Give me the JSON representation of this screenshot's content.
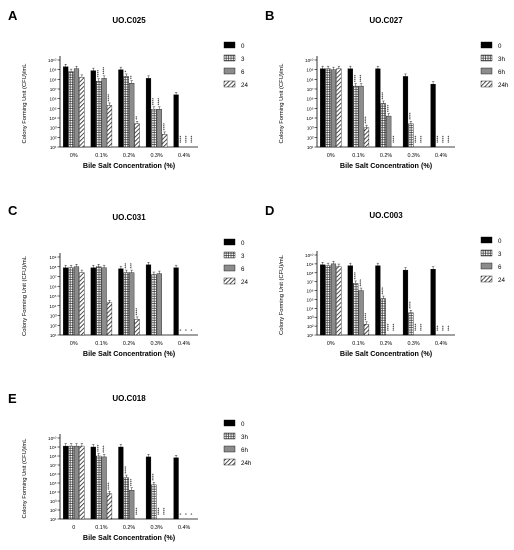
{
  "chart_data": [
    {
      "panel": "A",
      "title": "UO.C025",
      "type": "bar",
      "xlabel": "Bile Salt Concentration (%)",
      "ylabel": "Colony Forming Unit (CFU)/mL",
      "scale": "log",
      "ylim_exp": [
        1,
        10
      ],
      "ytick_labels": [
        "10¹⁰",
        "10⁹",
        "10⁸",
        "10⁷",
        "10⁶",
        "10⁵",
        "10⁴",
        "10³",
        "10²",
        "10¹"
      ],
      "categories": [
        "0%",
        "0.1%",
        "0.2%",
        "0.3%",
        "0.4%"
      ],
      "legend_position": "right",
      "series": [
        {
          "name": "0",
          "pattern": "solid",
          "log_values": [
            9.3,
            8.9,
            9.0,
            8.1,
            6.4
          ]
        },
        {
          "name": "3",
          "pattern": "grid",
          "log_values": [
            8.8,
            7.8,
            8.3,
            4.9,
            null
          ]
        },
        {
          "name": "6",
          "pattern": "gray",
          "log_values": [
            9.1,
            8.1,
            7.6,
            4.9,
            null
          ]
        },
        {
          "name": "24",
          "pattern": "diag",
          "log_values": [
            8.2,
            5.3,
            3.4,
            2.3,
            null
          ]
        }
      ],
      "annotations": [
        {
          "group": 1,
          "series": 1,
          "text": "****"
        },
        {
          "group": 1,
          "series": 2,
          "text": "****"
        },
        {
          "group": 1,
          "series": 3,
          "text": "****"
        },
        {
          "group": 2,
          "series": 1,
          "text": "*"
        },
        {
          "group": 2,
          "series": 2,
          "text": "**"
        },
        {
          "group": 2,
          "series": 3,
          "text": "**"
        },
        {
          "group": 3,
          "series": 1,
          "text": "****"
        },
        {
          "group": 3,
          "series": 2,
          "text": "****"
        },
        {
          "group": 3,
          "series": 3,
          "text": "****"
        },
        {
          "group": 4,
          "series": 1,
          "text": "****"
        },
        {
          "group": 4,
          "series": 2,
          "text": "****"
        },
        {
          "group": 4,
          "series": 3,
          "text": "****"
        }
      ]
    },
    {
      "panel": "B",
      "title": "UO.C027",
      "type": "bar",
      "xlabel": "Bile Salt Concentration (%)",
      "ylabel": "Colony Forming Unit (CFU)/mL",
      "scale": "log",
      "ylim_exp": [
        1,
        10
      ],
      "ytick_labels": [
        "10¹⁰",
        "10⁹",
        "10⁸",
        "10⁷",
        "10⁶",
        "10⁵",
        "10⁴",
        "10³",
        "10²",
        "10¹"
      ],
      "categories": [
        "0%",
        "0.1%",
        "0.2%",
        "0.3%",
        "0.4%"
      ],
      "legend_position": "right",
      "series": [
        {
          "name": "0",
          "pattern": "solid",
          "log_values": [
            9.1,
            9.1,
            9.1,
            8.3,
            7.5
          ]
        },
        {
          "name": "3h",
          "pattern": "grid",
          "log_values": [
            9.1,
            7.3,
            5.5,
            3.4,
            null
          ]
        },
        {
          "name": "6h",
          "pattern": "gray",
          "log_values": [
            9.0,
            7.3,
            4.2,
            null,
            null
          ]
        },
        {
          "name": "24h",
          "pattern": "diag",
          "log_values": [
            9.1,
            3.0,
            null,
            null,
            null
          ]
        }
      ],
      "annotations": [
        {
          "group": 1,
          "series": 1,
          "text": "****"
        },
        {
          "group": 1,
          "series": 2,
          "text": "****"
        },
        {
          "group": 1,
          "series": 3,
          "text": "****"
        },
        {
          "group": 2,
          "series": 1,
          "text": "****"
        },
        {
          "group": 2,
          "series": 2,
          "text": "****"
        },
        {
          "group": 2,
          "series": 3,
          "text": "****"
        },
        {
          "group": 3,
          "series": 1,
          "text": "****"
        },
        {
          "group": 3,
          "series": 2,
          "text": "****"
        },
        {
          "group": 3,
          "series": 3,
          "text": "****"
        },
        {
          "group": 4,
          "series": 1,
          "text": "****"
        },
        {
          "group": 4,
          "series": 2,
          "text": "****"
        },
        {
          "group": 4,
          "series": 3,
          "text": "****"
        }
      ]
    },
    {
      "panel": "C",
      "title": "UO.C031",
      "type": "bar",
      "xlabel": "Bile Salt Concentration (%)",
      "ylabel": "Colony Forming Unit (CFU)/mL",
      "scale": "log",
      "ylim_exp": [
        1,
        9
      ],
      "ytick_labels": [
        "10⁹",
        "10⁸",
        "10⁷",
        "10⁶",
        "10⁵",
        "10⁴",
        "10³",
        "10²",
        "10¹"
      ],
      "categories": [
        "0%",
        "0.1%",
        "0.2%",
        "0.3%",
        "0.4%"
      ],
      "legend_position": "right",
      "series": [
        {
          "name": "0",
          "pattern": "solid",
          "log_values": [
            7.9,
            7.9,
            7.8,
            8.2,
            7.9
          ]
        },
        {
          "name": "3",
          "pattern": "grid",
          "log_values": [
            7.9,
            8.0,
            7.4,
            7.2,
            null
          ]
        },
        {
          "name": "6",
          "pattern": "gray",
          "log_values": [
            8.0,
            7.9,
            7.4,
            7.3,
            null
          ]
        },
        {
          "name": "24",
          "pattern": "diag",
          "log_values": [
            7.4,
            4.3,
            2.6,
            null,
            null
          ]
        }
      ],
      "annotations": [
        {
          "group": 2,
          "series": 1,
          "text": "***"
        },
        {
          "group": 2,
          "series": 2,
          "text": "***"
        },
        {
          "group": 2,
          "series": 3,
          "text": "****"
        },
        {
          "group": 4,
          "series": 1,
          "text": "*"
        },
        {
          "group": 4,
          "series": 2,
          "text": "*"
        },
        {
          "group": 4,
          "series": 3,
          "text": "*"
        }
      ]
    },
    {
      "panel": "D",
      "title": "UO.C003",
      "type": "bar",
      "xlabel": "Bile Salt Concentration (%)",
      "ylabel": "Colony Forming Unit (CFU)/mL",
      "scale": "log",
      "ylim_exp": [
        1,
        10
      ],
      "ytick_labels": [
        "10¹⁰",
        "10⁹",
        "10⁸",
        "10⁷",
        "10⁶",
        "10⁵",
        "10⁴",
        "10³",
        "10²",
        "10¹"
      ],
      "categories": [
        "0%",
        "0.1%",
        "0.2%",
        "0.3%",
        "0.4%"
      ],
      "legend_position": "right",
      "series": [
        {
          "name": "0",
          "pattern": "solid",
          "log_values": [
            8.9,
            8.8,
            8.8,
            8.3,
            8.4
          ]
        },
        {
          "name": "3",
          "pattern": "grid",
          "log_values": [
            8.8,
            6.8,
            5.1,
            3.5,
            null
          ]
        },
        {
          "name": "6",
          "pattern": "gray",
          "log_values": [
            9.0,
            6.0,
            null,
            null,
            null
          ]
        },
        {
          "name": "24",
          "pattern": "diag",
          "log_values": [
            8.7,
            2.2,
            null,
            null,
            null
          ]
        }
      ],
      "annotations": [
        {
          "group": 1,
          "series": 1,
          "text": "****"
        },
        {
          "group": 1,
          "series": 2,
          "text": "****"
        },
        {
          "group": 1,
          "series": 3,
          "text": "****"
        },
        {
          "group": 2,
          "series": 1,
          "text": "****"
        },
        {
          "group": 2,
          "series": 2,
          "text": "****"
        },
        {
          "group": 2,
          "series": 3,
          "text": "****"
        },
        {
          "group": 3,
          "series": 1,
          "text": "****"
        },
        {
          "group": 3,
          "series": 2,
          "text": "****"
        },
        {
          "group": 3,
          "series": 3,
          "text": "****"
        },
        {
          "group": 4,
          "series": 1,
          "text": "***"
        },
        {
          "group": 4,
          "series": 2,
          "text": "***"
        },
        {
          "group": 4,
          "series": 3,
          "text": "***"
        }
      ]
    },
    {
      "panel": "E",
      "title": "UO.C018",
      "type": "bar",
      "xlabel": "Bile Salt Concentration (%)",
      "ylabel": "Colony Forming Unit (CFU)/mL",
      "scale": "log",
      "ylim_exp": [
        1,
        10
      ],
      "ytick_labels": [
        "10¹⁰",
        "10⁹",
        "10⁸",
        "10⁷",
        "10⁶",
        "10⁵",
        "10⁴",
        "10³",
        "10²",
        "10¹"
      ],
      "categories": [
        "0",
        "0.1%",
        "0.2%",
        "0.3%",
        "0.4%"
      ],
      "legend_position": "right",
      "series": [
        {
          "name": "0",
          "pattern": "solid",
          "log_values": [
            9.1,
            9.0,
            9.0,
            7.9,
            7.8
          ]
        },
        {
          "name": "3h",
          "pattern": "grid",
          "log_values": [
            9.1,
            8.0,
            5.6,
            4.8,
            null
          ]
        },
        {
          "name": "6h",
          "pattern": "gray",
          "log_values": [
            9.1,
            7.9,
            4.2,
            null,
            null
          ]
        },
        {
          "name": "24h",
          "pattern": "diag",
          "log_values": [
            9.1,
            3.8,
            null,
            null,
            null
          ]
        }
      ],
      "annotations": [
        {
          "group": 1,
          "series": 1,
          "text": "****"
        },
        {
          "group": 1,
          "series": 2,
          "text": "****"
        },
        {
          "group": 1,
          "series": 3,
          "text": "****"
        },
        {
          "group": 2,
          "series": 1,
          "text": "****"
        },
        {
          "group": 2,
          "series": 2,
          "text": "****"
        },
        {
          "group": 2,
          "series": 3,
          "text": "****"
        },
        {
          "group": 3,
          "series": 1,
          "text": "****"
        },
        {
          "group": 3,
          "series": 2,
          "text": "****"
        },
        {
          "group": 3,
          "series": 3,
          "text": "****"
        },
        {
          "group": 4,
          "series": 1,
          "text": "*"
        },
        {
          "group": 4,
          "series": 2,
          "text": "*"
        },
        {
          "group": 4,
          "series": 3,
          "text": "*"
        }
      ]
    }
  ]
}
